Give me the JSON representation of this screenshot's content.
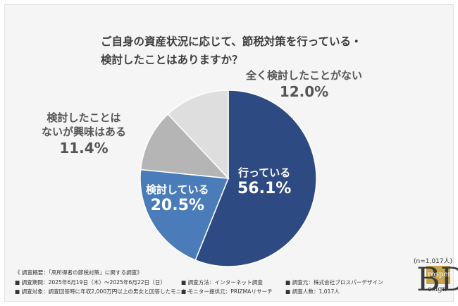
{
  "title_line1": "ご自身の資産状況に応じて、節税対策を行っている・",
  "title_line2": "検討したことはありますか？",
  "sample_size": "(n=1,017人)",
  "chart_data": {
    "type": "pie",
    "title": "ご自身の資産状況に応じて、節税対策を行っている・検討したことはありますか？",
    "start_angle_deg": 0,
    "direction": "clockwise",
    "slices": [
      {
        "cat_lines": [
          "行っている"
        ],
        "value": 56.1,
        "pct": "56.1%",
        "color": "#2e4a82"
      },
      {
        "cat_lines": [
          "検討している"
        ],
        "value": 20.5,
        "pct": "20.5%",
        "color": "#4a7cba"
      },
      {
        "cat_lines": [
          "検討したことは",
          "ないが興味はある"
        ],
        "value": 11.4,
        "pct": "11.4%",
        "color": "#b5b5b5"
      },
      {
        "cat_lines": [
          "全く検討したことがない"
        ],
        "value": 12.0,
        "pct": "12.0%",
        "color": "#dedede"
      }
    ]
  },
  "footer": {
    "heading": "《 調査概要：「高所得者の節税対策」に関する調査》",
    "row1": [
      "■ 調査期間：2025年6月19日（木）～2025年6月22日（日）",
      "■ 調査方法：インターネット調査",
      "■ 調査元：株式会社ブロスパーデザイン"
    ],
    "row2": [
      "■ 調査対象：調査回答時に年収2,000万円以上の男女と回答したモニター",
      "■ モニター提供元：PRIZMAリサーチ",
      "■ 調査人数：1,017人"
    ]
  },
  "logo": {
    "letters": "BD",
    "line1": "rosper",
    "line2": "esign"
  }
}
